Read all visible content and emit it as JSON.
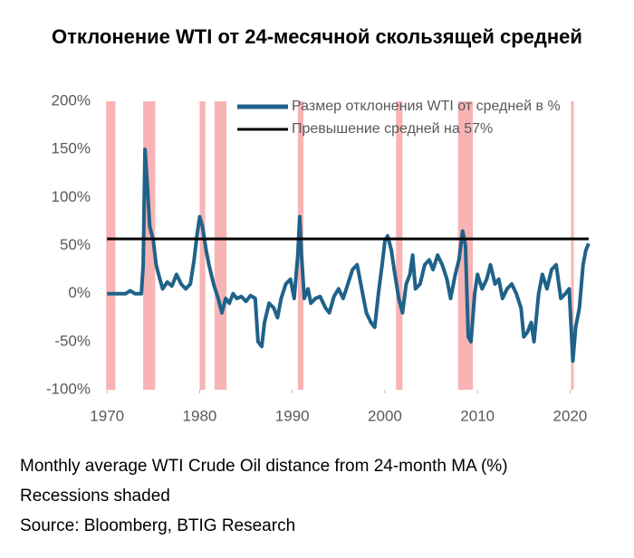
{
  "chart_data": {
    "type": "line",
    "title": "Отклонение WTI от 24-месячной скользящей средней",
    "notes": [
      "Monthly average WTI Crude Oil distance from 24-month MA (%)",
      "Recessions shaded",
      "Source: Bloomberg, BTIG Research"
    ],
    "xlim": [
      1969,
      2022.5
    ],
    "xticks": [
      1970,
      1980,
      1990,
      2000,
      2010,
      2020
    ],
    "ylim": [
      -100,
      200
    ],
    "yticks": [
      {
        "value": -100,
        "label": "-100%"
      },
      {
        "value": -50,
        "label": "-50%"
      },
      {
        "value": 0,
        "label": "0%"
      },
      {
        "value": 50,
        "label": "50%"
      },
      {
        "value": 100,
        "label": "100%"
      },
      {
        "value": 150,
        "label": "150%"
      },
      {
        "value": 200,
        "label": "200%"
      }
    ],
    "recession_color": "#f8b4b4",
    "recessions": [
      [
        1969.9,
        1970.9
      ],
      [
        1973.9,
        1975.2
      ],
      [
        1980.0,
        1980.6
      ],
      [
        1981.6,
        1982.9
      ],
      [
        1990.6,
        1991.2
      ],
      [
        2001.2,
        2001.9
      ],
      [
        2007.9,
        2009.5
      ],
      [
        2020.1,
        2020.4
      ]
    ],
    "legend": "top-right",
    "series": [
      {
        "name": "Размер отклонения WTI от средней в %",
        "color": "#1f6289",
        "x": [
          1970.0,
          1972.0,
          1972.5,
          1973.0,
          1973.7,
          1973.9,
          1974.1,
          1974.3,
          1974.6,
          1975.0,
          1975.3,
          1975.7,
          1976.0,
          1976.5,
          1977.0,
          1977.5,
          1978.0,
          1978.5,
          1979.0,
          1979.4,
          1979.7,
          1980.0,
          1980.3,
          1980.7,
          1981.0,
          1981.5,
          1982.0,
          1982.4,
          1982.8,
          1983.2,
          1983.6,
          1984.0,
          1984.5,
          1985.0,
          1985.5,
          1986.0,
          1986.3,
          1986.7,
          1987.0,
          1987.5,
          1988.0,
          1988.4,
          1988.8,
          1989.3,
          1989.8,
          1990.2,
          1990.6,
          1990.8,
          1991.0,
          1991.3,
          1991.7,
          1992.0,
          1992.5,
          1993.0,
          1993.6,
          1994.0,
          1994.5,
          1995.0,
          1995.5,
          1996.0,
          1996.5,
          1997.0,
          1997.5,
          1998.0,
          1998.5,
          1998.9,
          1999.3,
          1999.7,
          2000.0,
          2000.3,
          2000.7,
          2001.0,
          2001.5,
          2001.9,
          2002.3,
          2002.7,
          2003.0,
          2003.3,
          2003.8,
          2004.3,
          2004.8,
          2005.2,
          2005.7,
          2006.2,
          2006.7,
          2007.1,
          2007.6,
          2008.0,
          2008.4,
          2008.7,
          2009.0,
          2009.3,
          2009.7,
          2010.0,
          2010.5,
          2011.0,
          2011.4,
          2011.9,
          2012.3,
          2012.7,
          2013.2,
          2013.7,
          2014.2,
          2014.7,
          2015.0,
          2015.4,
          2015.8,
          2016.1,
          2016.6,
          2017.0,
          2017.5,
          2018.0,
          2018.5,
          2019.0,
          2019.5,
          2019.9,
          2020.3,
          2020.6,
          2021.0,
          2021.4,
          2021.7,
          2022.0
        ],
        "values": [
          0,
          0,
          3,
          0,
          0,
          30,
          150,
          120,
          70,
          55,
          30,
          15,
          5,
          12,
          8,
          20,
          10,
          5,
          10,
          35,
          60,
          80,
          70,
          45,
          30,
          10,
          -5,
          -20,
          -5,
          -10,
          0,
          -5,
          -3,
          -8,
          -2,
          -5,
          -50,
          -55,
          -30,
          -10,
          -15,
          -25,
          -5,
          10,
          15,
          -5,
          40,
          80,
          40,
          -5,
          5,
          -10,
          -5,
          -3,
          -15,
          -20,
          -3,
          5,
          -5,
          10,
          25,
          30,
          5,
          -20,
          -30,
          -35,
          0,
          30,
          55,
          60,
          45,
          25,
          -5,
          -20,
          10,
          20,
          40,
          5,
          10,
          30,
          35,
          25,
          40,
          30,
          15,
          -5,
          20,
          35,
          65,
          50,
          -45,
          -50,
          0,
          20,
          5,
          15,
          30,
          10,
          15,
          -5,
          5,
          10,
          0,
          -15,
          -45,
          -40,
          -30,
          -50,
          0,
          20,
          5,
          25,
          30,
          -5,
          0,
          5,
          -70,
          -35,
          -15,
          30,
          45,
          52
        ]
      },
      {
        "name": "Превышение средней на 57%",
        "color": "#000000",
        "x": [
          1970.0,
          2022.0
        ],
        "values": [
          57,
          57
        ]
      }
    ]
  }
}
